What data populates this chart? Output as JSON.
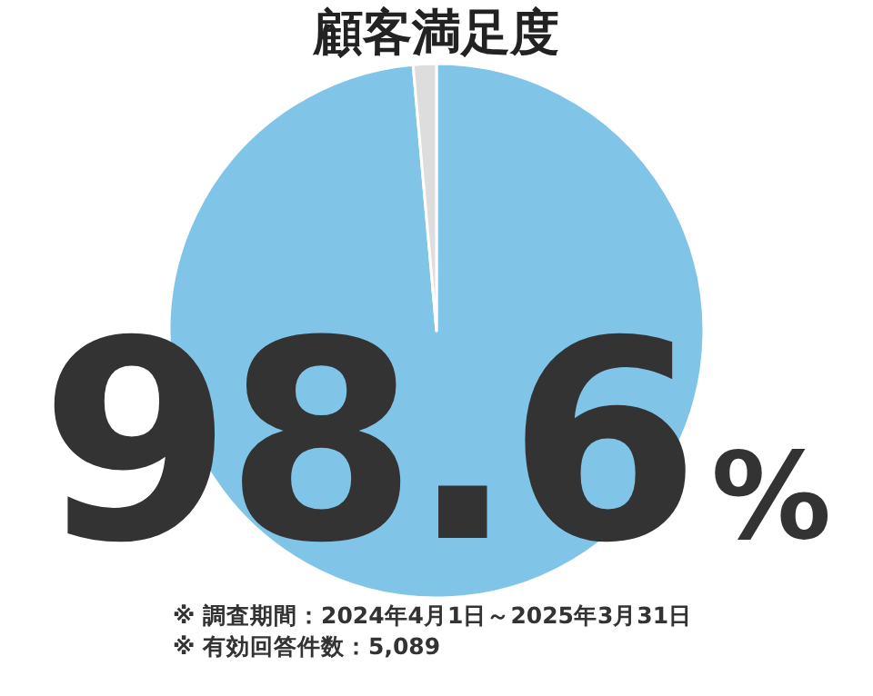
{
  "chart_data": {
    "type": "pie",
    "title": "顧客満足度",
    "categories": [
      null,
      null
    ],
    "values": [
      98.6,
      1.4
    ],
    "colors": [
      "#80c5e8",
      "#dddddd"
    ],
    "value_labels": [
      "98.6%",
      null
    ],
    "annotations": [
      "※ 調査期間：2024年4月1日～2025年3月31日",
      "※ 有効回答件数：5,089"
    ]
  }
}
